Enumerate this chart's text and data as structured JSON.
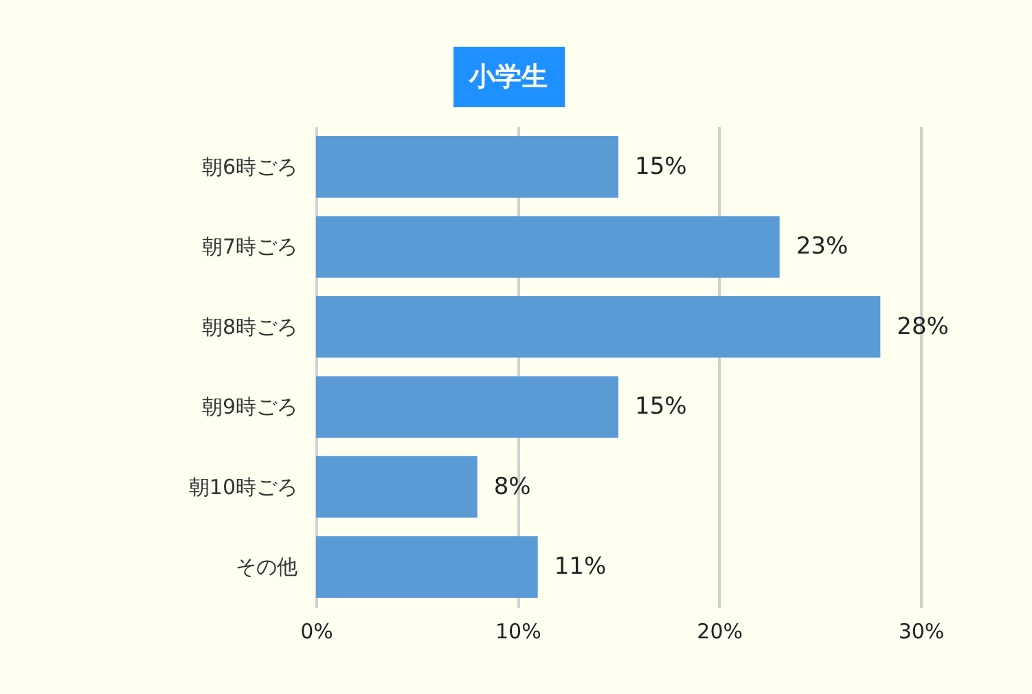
{
  "chart_data": {
    "type": "bar",
    "orientation": "horizontal",
    "title": "小学生",
    "categories": [
      "朝6時ごろ",
      "朝7時ごろ",
      "朝8時ごろ",
      "朝9時ごろ",
      "朝10時ごろ",
      "その他"
    ],
    "values": [
      15,
      23,
      28,
      15,
      8,
      11
    ],
    "color": "#5b9bd5",
    "xlim": [
      0,
      30
    ],
    "xticks": [
      {
        "value": 0,
        "label": "0%"
      },
      {
        "value": 10,
        "label": "10%"
      },
      {
        "value": 20,
        "label": "20%"
      },
      {
        "value": 30,
        "label": "30%"
      }
    ],
    "value_labels": [
      "15%",
      "23%",
      "28%",
      "15%",
      "8%",
      "11%"
    ],
    "grid": "x"
  }
}
